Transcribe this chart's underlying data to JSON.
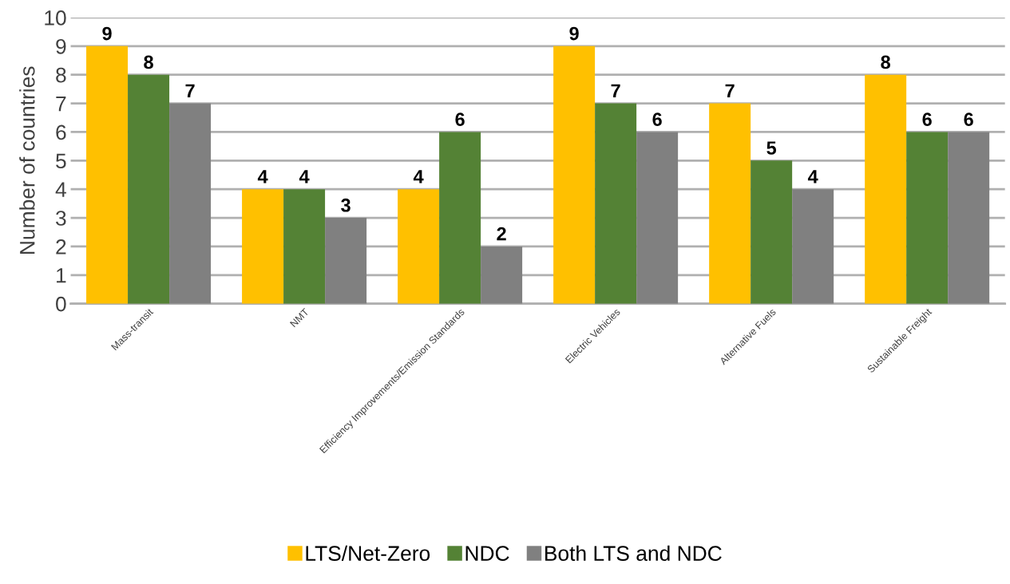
{
  "chart_data": {
    "type": "bar",
    "ylabel": "Number of countries",
    "categories": [
      "Mass-transit",
      "NMT",
      "Efficiency Improvements/Emission Standards",
      "Electric Vehicles",
      "Alternative Fuels",
      "Sustainable Freight"
    ],
    "series": [
      {
        "name": "LTS/Net-Zero",
        "color": "#ffc000",
        "values": [
          9,
          4,
          4,
          9,
          7,
          8
        ]
      },
      {
        "name": "NDC",
        "color": "#548235",
        "values": [
          8,
          4,
          6,
          7,
          5,
          6
        ]
      },
      {
        "name": "Both LTS and NDC",
        "color": "#808080",
        "values": [
          7,
          3,
          2,
          6,
          4,
          6
        ]
      }
    ],
    "ylim": [
      0,
      10
    ],
    "yticks": [
      0,
      1,
      2,
      3,
      4,
      5,
      6,
      7,
      8,
      9,
      10
    ],
    "grid": "y",
    "legend": "bottom",
    "data_labels": true
  }
}
